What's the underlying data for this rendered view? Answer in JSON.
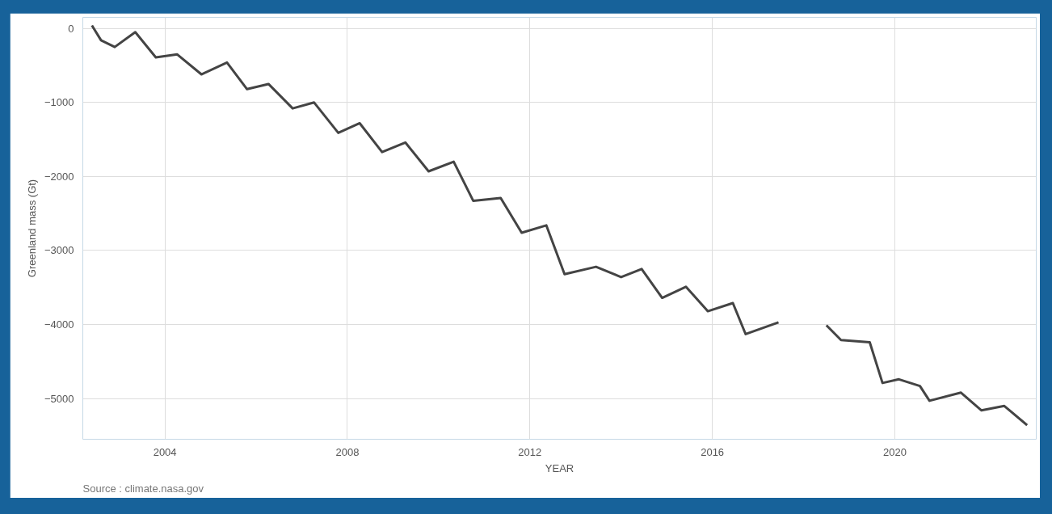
{
  "chart_data": {
    "type": "line",
    "xlabel": "YEAR",
    "ylabel": "Greenland mass (Gt)",
    "annotations": [
      "Source : climate.nasa.gov"
    ],
    "x": [
      2002.4,
      2002.6,
      2002.9,
      2003.35,
      2003.8,
      2004.27,
      2004.8,
      2005.36,
      2005.8,
      2006.27,
      2006.8,
      2007.27,
      2007.8,
      2008.27,
      2008.76,
      2009.27,
      2009.78,
      2010.33,
      2010.76,
      2011.36,
      2011.82,
      2012.36,
      2012.76,
      2013.45,
      2014.0,
      2014.45,
      2014.9,
      2015.42,
      2015.9,
      2016.45,
      2016.73,
      2017.45,
      2018.0,
      2018.5,
      2018.82,
      2019.45,
      2019.73,
      2020.09,
      2020.55,
      2020.76,
      2021.45,
      2021.9,
      2022.4,
      2022.9
    ],
    "series": [
      {
        "color": "#444444",
        "values": [
          40,
          -160,
          -250,
          -50,
          -390,
          -350,
          -620,
          -460,
          -820,
          -750,
          -1080,
          -1000,
          -1410,
          -1280,
          -1670,
          -1540,
          -1930,
          -1800,
          -2330,
          -2290,
          -2760,
          -2660,
          -3320,
          -3220,
          -3360,
          -3250,
          -3640,
          -3490,
          -3820,
          -3710,
          -4130,
          -3970,
          null,
          -4010,
          -4210,
          -4240,
          -4790,
          -4740,
          -4830,
          -5030,
          -4920,
          -5160,
          -5100,
          -5360
        ]
      }
    ],
    "xlim": [
      2002.2,
      2023.1
    ],
    "ylim": [
      -5550,
      150
    ],
    "xticks": [
      2004,
      2008,
      2012,
      2016,
      2020
    ],
    "yticks": [
      0,
      -1000,
      -2000,
      -3000,
      -4000,
      -5000
    ],
    "grid": true,
    "marker": "none",
    "line_style": "solid"
  }
}
